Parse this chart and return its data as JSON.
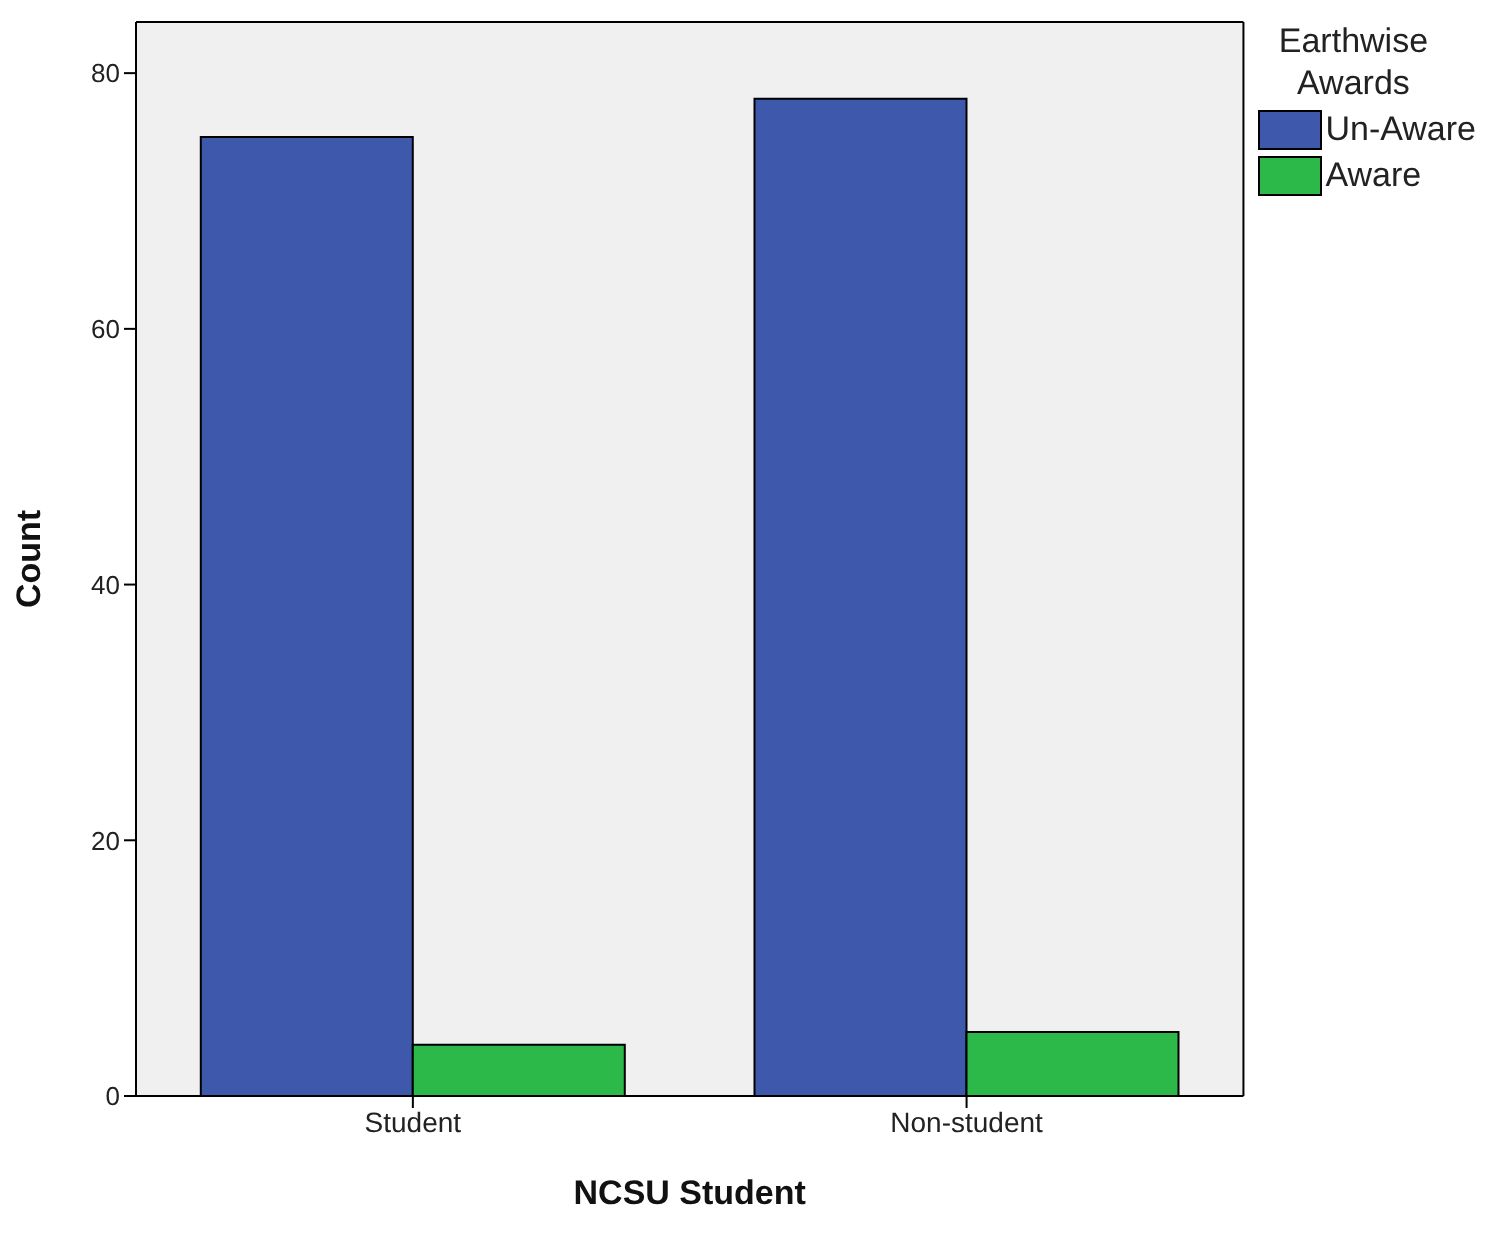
{
  "chart_data": {
    "type": "bar",
    "xlabel": "NCSU Student",
    "ylabel": "Count",
    "legend_title": "Earthwise Awards",
    "categories": [
      "Student",
      "Non-student"
    ],
    "series": [
      {
        "name": "Un-Aware",
        "color": "#3e58ac",
        "values": [
          75,
          78
        ]
      },
      {
        "name": "Aware",
        "color": "#2db84a",
        "values": [
          4,
          5
        ]
      }
    ],
    "ylim": [
      0,
      84
    ],
    "yticks": [
      0,
      20,
      40,
      60,
      80
    ],
    "grid": false,
    "legend": "top right"
  }
}
